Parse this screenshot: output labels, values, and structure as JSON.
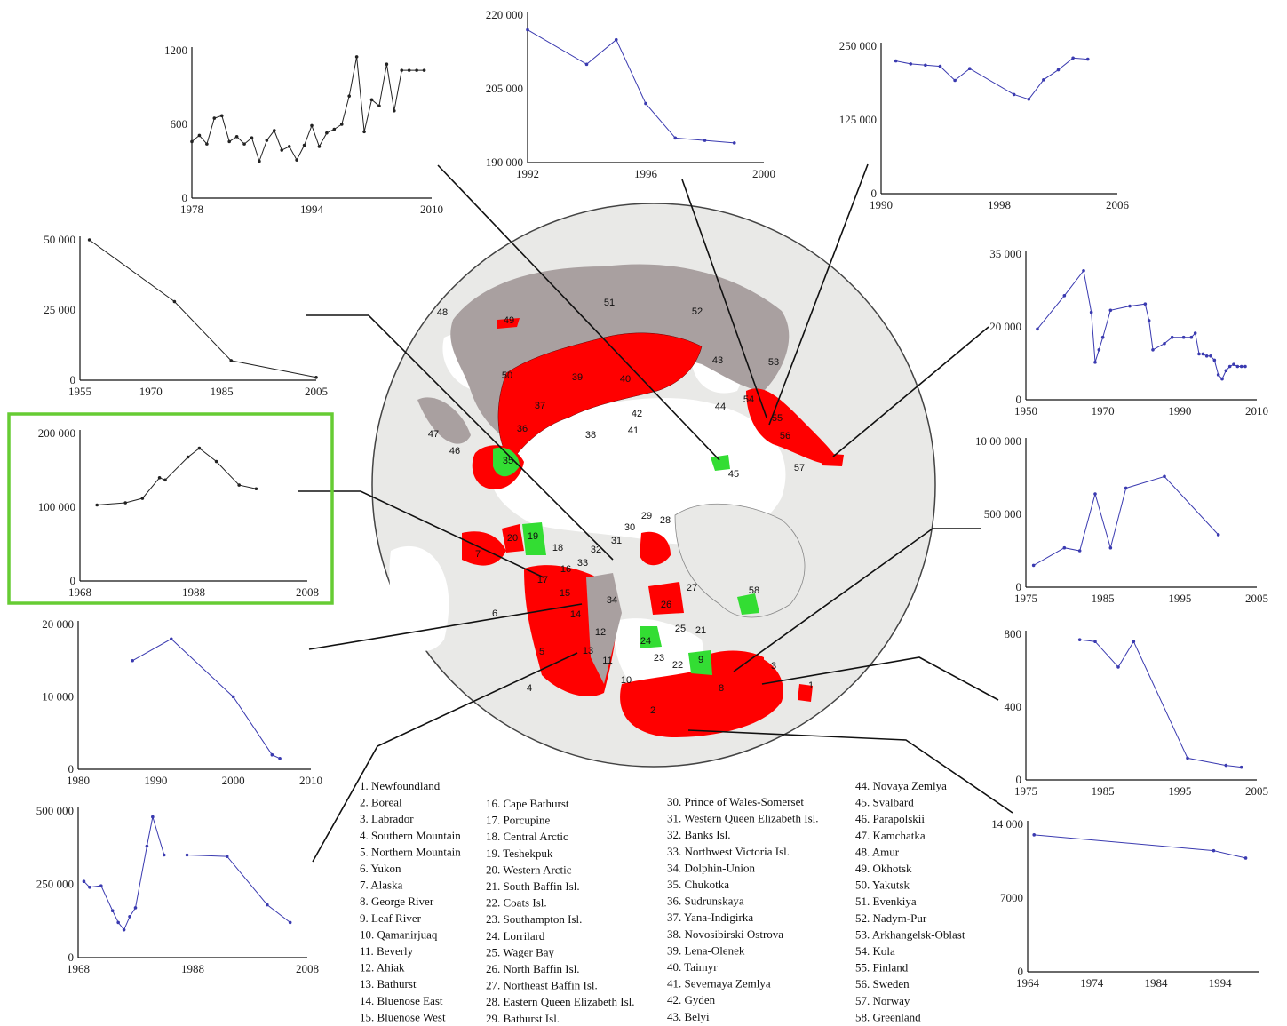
{
  "colors": {
    "range_declining": "#ff0000",
    "range_stable": "#33dd33",
    "range_other": "#a9a0a0",
    "land": "#e9e9e7",
    "ocean": "#ffffff",
    "highlight": "#66cc33",
    "blue_series": "#3a3ab0",
    "black_series": "#222222"
  },
  "chart_data": [
    {
      "id": "c1",
      "type": "line",
      "color": "black",
      "x": [
        1978,
        1979,
        1980,
        1981,
        1982,
        1983,
        1984,
        1985,
        1986,
        1987,
        1988,
        1989,
        1990,
        1991,
        1992,
        1993,
        1994,
        1995,
        1996,
        1997,
        1998,
        1999,
        2000,
        2001,
        2002,
        2003,
        2004,
        2005,
        2006,
        2007,
        2008,
        2009
      ],
      "y": [
        460,
        510,
        440,
        650,
        670,
        460,
        500,
        440,
        490,
        300,
        470,
        550,
        390,
        420,
        310,
        430,
        590,
        420,
        530,
        560,
        600,
        830,
        1150,
        540,
        800,
        750,
        1090,
        710,
        1040,
        1040,
        1040,
        1040
      ],
      "xlim": [
        1978,
        2010
      ],
      "ylim": [
        0,
        1200
      ],
      "xticks": [
        "1978",
        "1994",
        "2010"
      ],
      "yticks": [
        "0",
        "600",
        "1200"
      ]
    },
    {
      "id": "c2",
      "type": "line",
      "color": "blue",
      "x": [
        1992,
        1994,
        1995,
        1996,
        1997,
        1998,
        1999
      ],
      "y": [
        217000,
        210000,
        215000,
        202000,
        195000,
        194500,
        194000
      ],
      "xlim": [
        1992,
        2000
      ],
      "ylim": [
        190000,
        220000
      ],
      "xticks": [
        "1992",
        "1996",
        "2000"
      ],
      "yticks": [
        "190 000",
        "205 000",
        "220 000"
      ]
    },
    {
      "id": "c3",
      "type": "line",
      "color": "blue",
      "x": [
        1991,
        1992,
        1993,
        1994,
        1995,
        1996,
        1999,
        2000,
        2001,
        2002,
        2003,
        2004
      ],
      "y": [
        225000,
        220000,
        218000,
        216000,
        192000,
        212000,
        168000,
        160000,
        193000,
        210000,
        230000,
        228000
      ],
      "xlim": [
        1990,
        2006
      ],
      "ylim": [
        0,
        250000
      ],
      "xticks": [
        "1990",
        "1998",
        "2006"
      ],
      "yticks": [
        "0",
        "125 000",
        "250 000"
      ]
    },
    {
      "id": "c4",
      "type": "line",
      "color": "black",
      "x": [
        1957,
        1975,
        1987,
        2005
      ],
      "y": [
        50000,
        28000,
        7000,
        1000
      ],
      "xlim": [
        1955,
        2005
      ],
      "ylim": [
        0,
        50000
      ],
      "xticks": [
        "1955",
        "1970",
        "1985",
        "2005"
      ],
      "yticks": [
        "0",
        "25 000",
        "50 000"
      ]
    },
    {
      "id": "c5",
      "type": "line",
      "color": "black",
      "x": [
        1971,
        1976,
        1979,
        1982,
        1983,
        1987,
        1989,
        1992,
        1996,
        1999
      ],
      "y": [
        103000,
        106000,
        112000,
        140000,
        137000,
        168000,
        180000,
        162000,
        130000,
        125000
      ],
      "xlim": [
        1968,
        2008
      ],
      "ylim": [
        0,
        200000
      ],
      "xticks": [
        "1968",
        "1988",
        "2008"
      ],
      "yticks": [
        "0",
        "100 000",
        "200 000"
      ]
    },
    {
      "id": "c6",
      "type": "line",
      "color": "blue",
      "x": [
        1987,
        1992,
        2000,
        2005,
        2006
      ],
      "y": [
        15000,
        18000,
        10000,
        2000,
        1500
      ],
      "xlim": [
        1980,
        2010
      ],
      "ylim": [
        0,
        20000
      ],
      "xticks": [
        "1980",
        "1990",
        "2000",
        "2010"
      ],
      "yticks": [
        "0",
        "10 000",
        "20 000"
      ]
    },
    {
      "id": "c7",
      "type": "line",
      "color": "blue",
      "x": [
        1969,
        1970,
        1972,
        1974,
        1975,
        1976,
        1977,
        1978,
        1980,
        1981,
        1983,
        1987,
        1994,
        2001,
        2005
      ],
      "y": [
        260000,
        240000,
        245000,
        160000,
        120000,
        95000,
        140000,
        170000,
        380000,
        480000,
        350000,
        350000,
        345000,
        180000,
        120000
      ],
      "xlim": [
        1968,
        2008
      ],
      "ylim": [
        0,
        500000
      ],
      "xticks": [
        "1968",
        "1988",
        "2008"
      ],
      "yticks": [
        "0",
        "250 000",
        "500 000"
      ]
    },
    {
      "id": "c8",
      "type": "line",
      "color": "blue",
      "x": [
        1953,
        1960,
        1965,
        1967,
        1968,
        1969,
        1970,
        1972,
        1977,
        1981,
        1982,
        1983,
        1986,
        1988,
        1991,
        1993,
        1994,
        1995,
        1996,
        1997,
        1998,
        1999,
        2000,
        2001,
        2002,
        2003,
        2004,
        2005,
        2006,
        2007
      ],
      "y": [
        17000,
        25000,
        31000,
        21000,
        9000,
        12000,
        15000,
        21500,
        22500,
        23000,
        19000,
        12000,
        13500,
        15000,
        15000,
        15000,
        16000,
        11000,
        11000,
        10500,
        10500,
        9500,
        6000,
        5000,
        7000,
        8000,
        8500,
        8000,
        8000,
        8000
      ],
      "xlim": [
        1950,
        2010
      ],
      "ylim": [
        0,
        35000
      ],
      "xticks": [
        "1950",
        "1970",
        "1990",
        "2010"
      ],
      "yticks": [
        "0",
        "20 000",
        "35 000"
      ]
    },
    {
      "id": "c9",
      "type": "line",
      "color": "blue",
      "x": [
        1976,
        1980,
        1982,
        1984,
        1986,
        1988,
        1993,
        2000
      ],
      "y": [
        150000,
        270000,
        250000,
        640000,
        270000,
        680000,
        760000,
        360000
      ],
      "xlim": [
        1975,
        2005
      ],
      "ylim": [
        0,
        1000000
      ],
      "xticks": [
        "1975",
        "1985",
        "1995",
        "2005"
      ],
      "yticks": [
        "0",
        "500 000",
        "10 00 000"
      ]
    },
    {
      "id": "c10",
      "type": "line",
      "color": "blue",
      "x": [
        1982,
        1984,
        1987,
        1989,
        1996,
        2001,
        2003
      ],
      "y": [
        770,
        760,
        620,
        760,
        120,
        80,
        70
      ],
      "xlim": [
        1975,
        2005
      ],
      "ylim": [
        0,
        800
      ],
      "xticks": [
        "1975",
        "1985",
        "1995",
        "2005"
      ],
      "yticks": [
        "0",
        "400",
        "800"
      ]
    },
    {
      "id": "c11",
      "type": "line",
      "color": "blue",
      "x": [
        1965,
        1993,
        1998
      ],
      "y": [
        13000,
        11500,
        10800
      ],
      "xlim": [
        1964,
        2000
      ],
      "ylim": [
        0,
        14000
      ],
      "xticks": [
        "1964",
        "1974",
        "1984",
        "1994"
      ],
      "yticks": [
        "0",
        "7000",
        "14 000"
      ]
    }
  ],
  "map_labels": [
    "1",
    "2",
    "3",
    "4",
    "5",
    "6",
    "7",
    "8",
    "9",
    "10",
    "11",
    "12",
    "13",
    "14",
    "15",
    "16",
    "17",
    "18",
    "19",
    "20",
    "21",
    "22",
    "23",
    "24",
    "25",
    "26",
    "27",
    "28",
    "29",
    "30",
    "31",
    "32",
    "33",
    "34",
    "35",
    "36",
    "37",
    "38",
    "39",
    "40",
    "41",
    "42",
    "43",
    "44",
    "45",
    "46",
    "47",
    "48",
    "49",
    "50",
    "51",
    "52",
    "53",
    "54",
    "55",
    "56",
    "57",
    "58"
  ],
  "legend": [
    [
      "1. Newfoundland",
      "2. Boreal",
      "3. Labrador",
      "4. Southern Mountain",
      "5. Northern Mountain",
      "6. Yukon",
      "7. Alaska",
      "8. George River",
      "9. Leaf River",
      "10. Qamanirjuaq",
      "11. Beverly",
      "12. Ahiak",
      "13. Bathurst",
      "14. Bluenose East",
      "15. Bluenose West"
    ],
    [
      "16. Cape Bathurst",
      "17. Porcupine",
      "18. Central Arctic",
      "19. Teshekpuk",
      "20. Western Arctic",
      "21. South Baffin Isl.",
      "22. Coats Isl.",
      "23. Southampton Isl.",
      "24. Lorrilard",
      "25. Wager Bay",
      "26. North Baffin Isl.",
      "27. Northeast Baffin Isl.",
      "28. Eastern Queen Elizabeth Isl.",
      "29. Bathurst Isl."
    ],
    [
      "30. Prince of Wales-Somerset",
      "31. Western Queen Elizabeth Isl.",
      "32. Banks Isl.",
      "33. Northwest Victoria Isl.",
      "34. Dolphin-Union",
      "35. Chukotka",
      "36. Sudrunskaya",
      "37. Yana-Indigirka",
      "38. Novosibirski Ostrova",
      "39. Lena-Olenek",
      "40. Taimyr",
      "41. Severnaya Zemlya",
      "42. Gyden",
      "43. Belyi"
    ],
    [
      "44. Novaya Zemlya",
      "45. Svalbard",
      "46. Parapolskii",
      "47. Kamchatka",
      "48. Amur",
      "49. Okhotsk",
      "50. Yakutsk",
      "51. Evenkiya",
      "52. Nadym-Pur",
      "53. Arkhangelsk-Oblast",
      "54. Kola",
      "55. Finland",
      "56. Sweden",
      "57. Norway",
      "58. Greenland"
    ]
  ]
}
